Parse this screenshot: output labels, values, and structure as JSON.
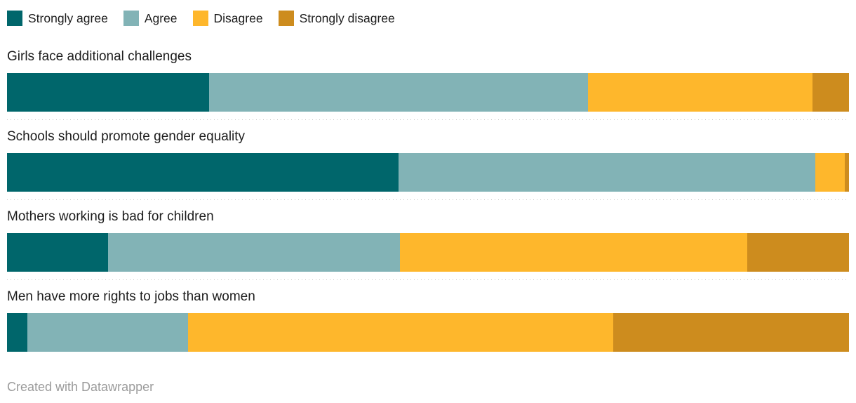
{
  "legend": {
    "items": [
      {
        "label": "Strongly agree",
        "color": "#00666b"
      },
      {
        "label": "Agree",
        "color": "#82b3b6"
      },
      {
        "label": "Disagree",
        "color": "#feb72c"
      },
      {
        "label": "Strongly disagree",
        "color": "#cd8c1e"
      }
    ]
  },
  "chart_data": {
    "type": "bar",
    "stacked": true,
    "orientation": "horizontal",
    "unit": "percent",
    "xlim": [
      0,
      100
    ],
    "grid": false,
    "legend_position": "top",
    "categories": [
      "Girls face additional challenges",
      "Schools should promote gender equality",
      "Mothers working is bad for children",
      "Men have more rights to jobs than women"
    ],
    "series": [
      {
        "name": "Strongly agree",
        "color": "#00666b",
        "values": [
          24.0,
          46.5,
          12.0,
          2.4
        ]
      },
      {
        "name": "Agree",
        "color": "#82b3b6",
        "values": [
          45.0,
          49.5,
          34.7,
          19.1
        ]
      },
      {
        "name": "Disagree",
        "color": "#feb72c",
        "values": [
          26.7,
          3.5,
          41.2,
          50.5
        ]
      },
      {
        "name": "Strongly disagree",
        "color": "#cd8c1e",
        "values": [
          4.3,
          0.5,
          12.1,
          28.0
        ]
      }
    ]
  },
  "footer": {
    "text": "Created with Datawrapper"
  }
}
